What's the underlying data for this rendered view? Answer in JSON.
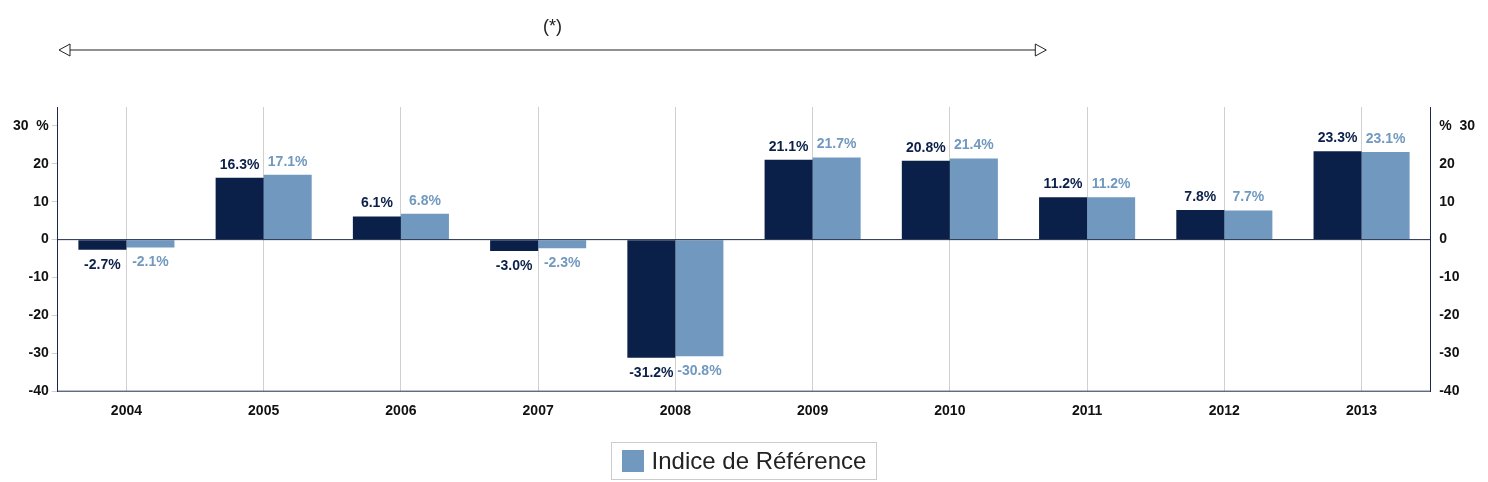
{
  "chart_data": {
    "type": "bar",
    "annotations": [
      "(*)"
    ],
    "categories": [
      "2004",
      "2005",
      "2006",
      "2007",
      "2008",
      "2009",
      "2010",
      "2011",
      "2012",
      "2013"
    ],
    "series": [
      {
        "color": "#0b2049",
        "values": [
          -2.7,
          16.3,
          6.1,
          -3.0,
          -31.2,
          21.1,
          20.8,
          11.2,
          7.8,
          23.3
        ],
        "value_labels": [
          "-2.7%",
          "16.3%",
          "6.1%",
          "-3.0%",
          "-31.2%",
          "21.1%",
          "20.8%",
          "11.2%",
          "7.8%",
          "23.3%"
        ]
      },
      {
        "name": "Indice de Référence",
        "color": "#7199bf",
        "values": [
          -2.1,
          17.1,
          6.8,
          -2.3,
          -30.8,
          21.7,
          21.4,
          11.2,
          7.7,
          23.1
        ],
        "value_labels": [
          "-2.1%",
          "17.1%",
          "6.8%",
          "-2.3%",
          "-30.8%",
          "21.7%",
          "21.4%",
          "11.2%",
          "7.7%",
          "23.1%"
        ]
      }
    ],
    "ylim": [
      -40,
      35
    ],
    "yticks": [
      -40,
      -30,
      -20,
      -10,
      0,
      10,
      20,
      {
        "value": 30,
        "label": "30  %"
      }
    ],
    "y2lim": [
      -40,
      35
    ],
    "y2ticks": [
      -40,
      -30,
      -20,
      -10,
      0,
      10,
      20,
      {
        "value": 30,
        "label": "%  30"
      }
    ],
    "grid": "x",
    "legend": "bottom"
  }
}
